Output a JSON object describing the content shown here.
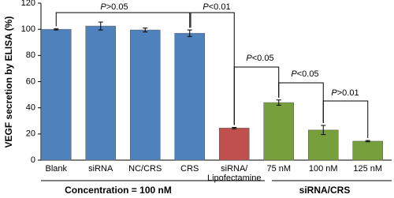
{
  "chart_data": {
    "type": "bar",
    "y_label": "VEGF secretion by ELISA (%)",
    "categories": [
      "Blank",
      "siRNA",
      "NC/CRS",
      "CRS",
      "siRNA/\nLipofectamine",
      "75 nM",
      "100 nM",
      "125 nM"
    ],
    "values": [
      100,
      102.5,
      99.5,
      97,
      24.5,
      44,
      23,
      14.5
    ],
    "errors": [
      0.5,
      3,
      1.5,
      2.5,
      0.5,
      2,
      3.5,
      0.5
    ],
    "colors": [
      "#4f81bd",
      "#4f81bd",
      "#4f81bd",
      "#4f81bd",
      "#c0504d",
      "#77a03c",
      "#77a03c",
      "#77a03c"
    ],
    "ylim": [
      0,
      120
    ],
    "yticks": [
      0,
      20,
      40,
      60,
      80,
      100,
      120
    ],
    "annotations": [
      "P>0.05",
      "P<0.01",
      "P<0.05",
      "P<0.05",
      "P>0.01"
    ],
    "groups": [
      "Concentration = 100 nM",
      "siRNA/CRS"
    ]
  }
}
